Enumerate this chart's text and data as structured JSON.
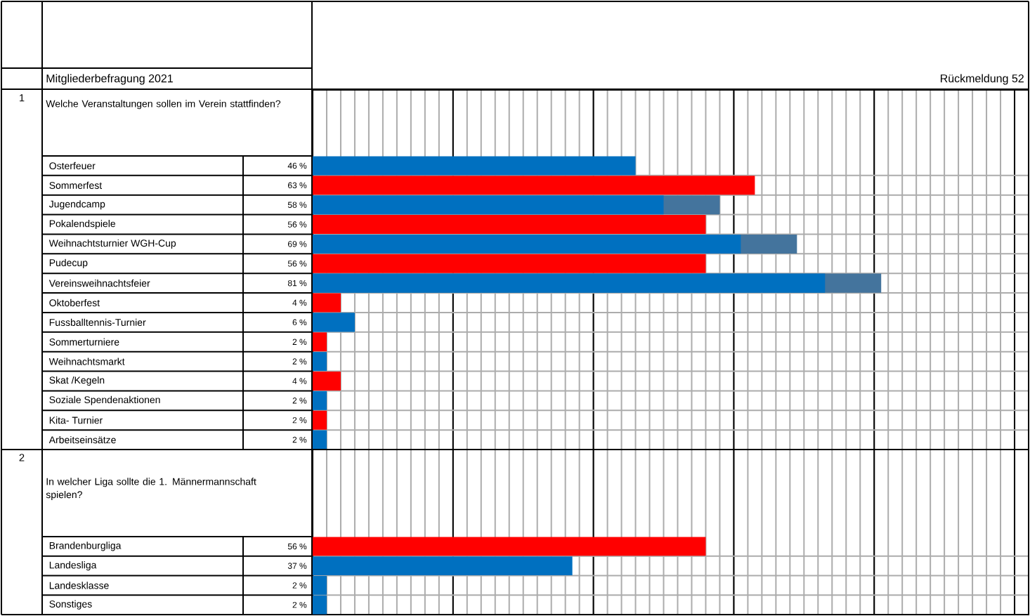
{
  "chart_data": [
    {
      "type": "bar",
      "orientation": "horizontal",
      "title": "Welche Veranstaltungen sollen im Verein stattfinden?",
      "annotations": [
        "1",
        "Mitgliederbefragung 2021",
        "Rückmeldung 52"
      ],
      "categories": [
        "Osterfeuer",
        "Sommerfest",
        "Jugendcamp",
        "Pokalendspiele",
        "Weihnachtsturnier WGH-Cup",
        "Pudecup",
        "Vereinsweihnachtsfeier",
        "Oktoberfest",
        "Fussballtennis-Turnier",
        "Sommerturniere",
        "Weihnachtsmarkt",
        "Skat /Kegeln",
        "Soziale Spendenaktionen",
        "Kita- Turnier",
        "Arbeitseinsätze"
      ],
      "series": [
        {
          "color": "#44749d",
          "values": [
            null,
            null,
            58,
            null,
            69,
            null,
            81,
            null,
            null,
            null,
            null,
            null,
            null,
            null,
            null
          ],
          "value_labels": [
            null,
            null,
            "58 %",
            null,
            "69 %",
            null,
            "81 %",
            null,
            null,
            null,
            null,
            null,
            null,
            null,
            null
          ]
        },
        {
          "colors": [
            "#0070c0",
            "#ff0000",
            "#0070c0",
            "#ff0000",
            "#0070c0",
            "#ff0000",
            "#0070c0",
            "#ff0000",
            "#0070c0",
            "#ff0000",
            "#0070c0",
            "#ff0000",
            "#0070c0",
            "#ff0000",
            "#0070c0"
          ],
          "values": [
            46,
            63,
            50,
            56,
            61,
            56,
            73,
            4,
            6,
            2,
            2,
            4,
            2,
            2,
            2
          ],
          "value_labels": [
            "46 %",
            "63 %",
            null,
            "56 %",
            null,
            "56 %",
            null,
            "4 %",
            "6 %",
            "2 %",
            "2 %",
            "4 %",
            "2 %",
            "2 %",
            "2 %"
          ]
        }
      ],
      "xlim": [
        0,
        102
      ],
      "xticks": [
        {
          "value": 0,
          "label": null
        },
        {
          "value": 20,
          "label": null
        },
        {
          "value": 40,
          "label": null
        },
        {
          "value": 60,
          "label": null
        },
        {
          "value": 80,
          "label": null
        },
        {
          "value": 100,
          "label": null
        }
      ],
      "grid": true,
      "tick_labels": "y"
    },
    {
      "type": "bar",
      "orientation": "horizontal",
      "title": "In welcher Liga sollte die 1. Männermannschaft spielen?",
      "annotations": [
        "2"
      ],
      "categories": [
        "Brandenburgliga",
        "Landesliga",
        "Landesklasse",
        "Sonstiges"
      ],
      "series": [
        {
          "colors": [
            "#ff0000",
            "#0070c0",
            "#0070c0",
            "#0070c0"
          ],
          "values": [
            56,
            37,
            2,
            2
          ],
          "value_labels": [
            "56 %",
            "37 %",
            "2 %",
            "2 %"
          ]
        }
      ],
      "xlim": [
        0,
        102
      ],
      "xticks": [
        {
          "value": 0,
          "label": null
        },
        {
          "value": 20,
          "label": null
        },
        {
          "value": 40,
          "label": null
        },
        {
          "value": 60,
          "label": null
        },
        {
          "value": 80,
          "label": null
        },
        {
          "value": 100,
          "label": null
        }
      ],
      "grid": true,
      "tick_labels": "y"
    }
  ]
}
